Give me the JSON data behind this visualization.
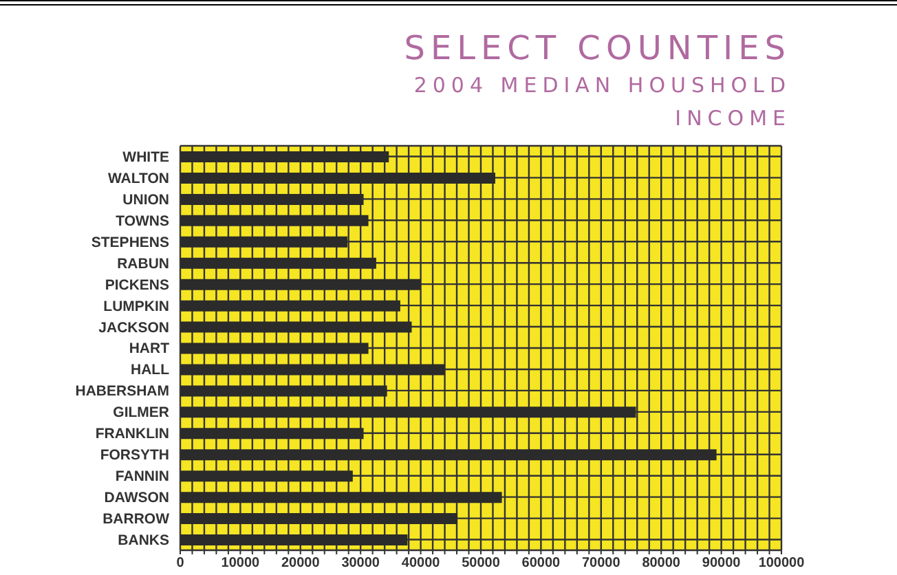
{
  "chart_data": {
    "type": "bar",
    "orientation": "horizontal",
    "title": "SELECT COUNTIES",
    "subtitle": "2004 MEDIAN HOUSHOLD INCOME",
    "categories": [
      "WHITE",
      "WALTON",
      "UNION",
      "TOWNS",
      "STEPHENS",
      "RABUN",
      "PICKENS",
      "LUMPKIN",
      "JACKSON",
      "HART",
      "HALL",
      "HABERSHAM",
      "GILMER",
      "FRANKLIN",
      "FORSYTH",
      "FANNIN",
      "DAWSON",
      "BARROW",
      "BANKS"
    ],
    "values": [
      34700,
      52400,
      30500,
      31300,
      27800,
      32600,
      40000,
      36600,
      38500,
      31300,
      44000,
      34400,
      75800,
      30500,
      89200,
      28700,
      53500,
      46100,
      37800
    ],
    "color": "#2b2b2b",
    "xlim": [
      0,
      100000
    ],
    "xticks": [
      0,
      {
        "value": 2000,
        "label": null
      },
      {
        "value": 4000,
        "label": null
      },
      {
        "value": 6000,
        "label": null
      },
      {
        "value": 8000,
        "label": null
      },
      10000,
      {
        "value": 12000,
        "label": null
      },
      {
        "value": 14000,
        "label": null
      },
      {
        "value": 16000,
        "label": null
      },
      {
        "value": 18000,
        "label": null
      },
      20000,
      {
        "value": 22000,
        "label": null
      },
      {
        "value": 24000,
        "label": null
      },
      {
        "value": 26000,
        "label": null
      },
      {
        "value": 28000,
        "label": null
      },
      30000,
      {
        "value": 32000,
        "label": null
      },
      {
        "value": 34000,
        "label": null
      },
      {
        "value": 36000,
        "label": null
      },
      {
        "value": 38000,
        "label": null
      },
      40000,
      {
        "value": 42000,
        "label": null
      },
      {
        "value": 44000,
        "label": null
      },
      {
        "value": 46000,
        "label": null
      },
      {
        "value": 48000,
        "label": null
      },
      50000,
      {
        "value": 52000,
        "label": null
      },
      {
        "value": 54000,
        "label": null
      },
      {
        "value": 56000,
        "label": null
      },
      {
        "value": 58000,
        "label": null
      },
      60000,
      {
        "value": 62000,
        "label": null
      },
      {
        "value": 64000,
        "label": null
      },
      {
        "value": 66000,
        "label": null
      },
      {
        "value": 68000,
        "label": null
      },
      70000,
      {
        "value": 72000,
        "label": null
      },
      {
        "value": 74000,
        "label": null
      },
      {
        "value": 76000,
        "label": null
      },
      {
        "value": 78000,
        "label": null
      },
      80000,
      {
        "value": 82000,
        "label": null
      },
      {
        "value": 84000,
        "label": null
      },
      {
        "value": 86000,
        "label": null
      },
      {
        "value": 88000,
        "label": null
      },
      90000,
      {
        "value": 92000,
        "label": null
      },
      {
        "value": 94000,
        "label": null
      },
      {
        "value": 96000,
        "label": null
      },
      {
        "value": 98000,
        "label": null
      },
      100000
    ],
    "grid": true
  }
}
